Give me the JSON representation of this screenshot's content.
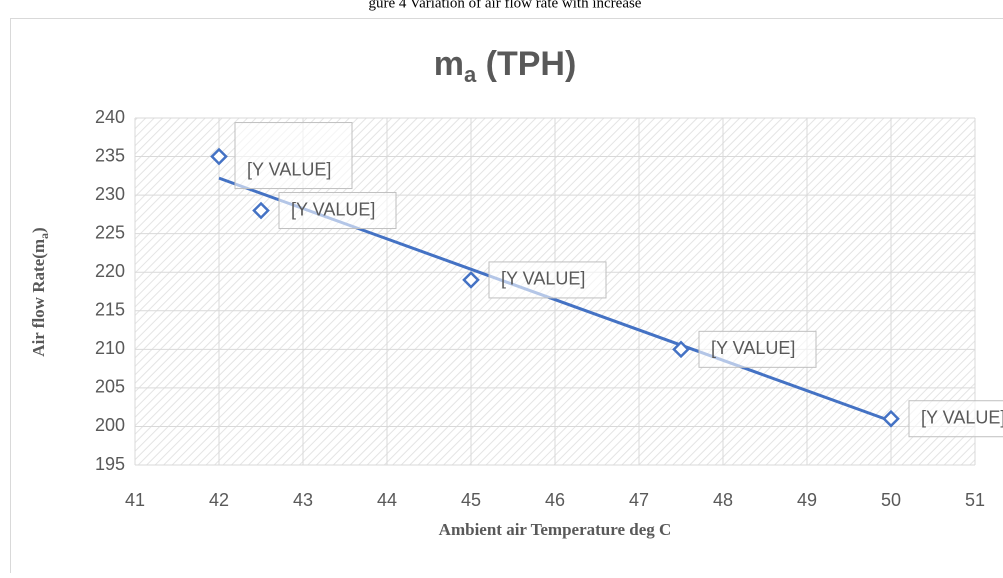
{
  "caption": "gure 4 Variation of air flow rate with increase",
  "chart_data": {
    "type": "scatter",
    "title": [
      "m",
      "a",
      " (TPH)"
    ],
    "xlabel": "Ambient air Temperature deg C",
    "ylabel": [
      "Air flow Rate(m",
      "a",
      ")"
    ],
    "series": [
      {
        "name": "ma (TPH)",
        "color": "#4472c4",
        "x": [
          42,
          42.5,
          45,
          47.5,
          50
        ],
        "values": [
          235,
          228,
          219,
          210,
          201
        ],
        "value_labels": [
          "[Y VALUE]",
          "[Y VALUE]",
          "[Y VALUE]",
          "[Y VALUE]",
          "[Y VALUE]"
        ]
      }
    ],
    "trendline": {
      "x": [
        42,
        50
      ],
      "values": [
        232.2,
        200.7
      ],
      "color": "#4472c4"
    },
    "xlim": [
      41,
      51
    ],
    "xticks": [
      41,
      42,
      43,
      44,
      45,
      46,
      47,
      48,
      49,
      50,
      51
    ],
    "ylim": [
      195,
      240
    ],
    "yticks": [
      195,
      200,
      205,
      210,
      215,
      220,
      225,
      230,
      235,
      240
    ],
    "grid": true
  }
}
